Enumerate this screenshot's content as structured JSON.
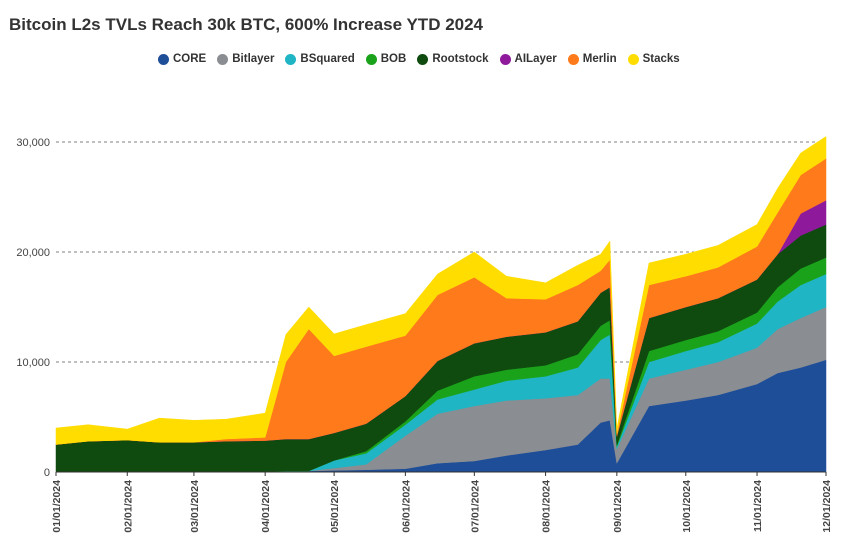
{
  "chart_data": {
    "type": "area",
    "stacked": true,
    "title": "Bitcoin L2s TVLs Reach 30k BTC, 600% Increase YTD 2024",
    "xlabel": "",
    "ylabel": "",
    "ylim": [
      0,
      30000
    ],
    "yticks": [
      0,
      10000,
      20000,
      30000
    ],
    "ytick_labels": [
      "0",
      "10,000",
      "20,000",
      "30,000"
    ],
    "grid": "dashed-horizontal",
    "legend_position": "top",
    "x": [
      "01/01/2024",
      "01/15/2024",
      "02/01/2024",
      "02/15/2024",
      "03/01/2024",
      "03/15/2024",
      "04/01/2024",
      "04/10/2024",
      "04/20/2024",
      "05/01/2024",
      "05/15/2024",
      "06/01/2024",
      "06/15/2024",
      "07/01/2024",
      "07/15/2024",
      "08/01/2024",
      "08/15/2024",
      "08/25/2024",
      "08/29/2024",
      "09/01/2024",
      "09/15/2024",
      "10/01/2024",
      "10/15/2024",
      "11/01/2024",
      "11/10/2024",
      "11/20/2024",
      "12/01/2024"
    ],
    "xtick_labels": [
      "01/01/2024",
      "02/01/2024",
      "03/01/2024",
      "04/01/2024",
      "05/01/2024",
      "06/01/2024",
      "07/01/2024",
      "08/01/2024",
      "09/01/2024",
      "10/01/2024",
      "11/01/2024",
      "12/01/2024"
    ],
    "series": [
      {
        "name": "CORE",
        "color": "#1f4e99",
        "values": [
          0,
          0,
          0,
          0,
          0,
          0,
          50,
          100,
          100,
          150,
          200,
          300,
          800,
          1000,
          1500,
          2000,
          2500,
          4500,
          4700,
          800,
          6000,
          6500,
          7000,
          8000,
          9000,
          9500,
          10200
        ]
      },
      {
        "name": "Bitlayer",
        "color": "#8a8d91",
        "values": [
          0,
          0,
          0,
          0,
          0,
          0,
          0,
          0,
          0,
          200,
          500,
          3000,
          4500,
          5000,
          5000,
          4700,
          4500,
          4000,
          3800,
          1300,
          2500,
          2800,
          3000,
          3300,
          4000,
          4500,
          4800
        ]
      },
      {
        "name": "BSquared",
        "color": "#1fb5c4",
        "values": [
          0,
          0,
          0,
          0,
          0,
          0,
          0,
          0,
          0,
          700,
          1000,
          1000,
          1300,
          1500,
          1800,
          2000,
          2500,
          3500,
          4000,
          200,
          1500,
          1700,
          1800,
          2200,
          2500,
          3000,
          3000
        ]
      },
      {
        "name": "BOB",
        "color": "#1aa31a",
        "values": [
          0,
          0,
          0,
          0,
          0,
          0,
          0,
          0,
          0,
          0,
          200,
          300,
          800,
          1200,
          1000,
          1000,
          1200,
          1300,
          1300,
          150,
          1000,
          1000,
          1000,
          1000,
          1300,
          1500,
          1500
        ]
      },
      {
        "name": "Rootstock",
        "color": "#0f4a0f",
        "values": [
          2500,
          2800,
          2900,
          2700,
          2700,
          2800,
          2800,
          2900,
          2900,
          2500,
          2500,
          2300,
          2700,
          3000,
          3000,
          3000,
          3000,
          3000,
          3000,
          800,
          3000,
          3000,
          3000,
          3000,
          3000,
          3000,
          3000
        ]
      },
      {
        "name": "AILayer",
        "color": "#8e1a9b",
        "values": [
          0,
          0,
          0,
          0,
          0,
          0,
          0,
          0,
          0,
          0,
          0,
          0,
          0,
          0,
          0,
          0,
          0,
          0,
          0,
          0,
          0,
          0,
          0,
          0,
          0,
          2000,
          2200
        ]
      },
      {
        "name": "Merlin",
        "color": "#ff7a1a",
        "values": [
          0,
          0,
          0,
          0,
          0,
          200,
          300,
          7000,
          10000,
          7000,
          7000,
          5500,
          6000,
          6000,
          3500,
          3000,
          3300,
          2000,
          2500,
          200,
          3000,
          2800,
          2800,
          3000,
          3800,
          3500,
          3800
        ]
      },
      {
        "name": "Stacks",
        "color": "#ffdd00",
        "values": [
          1500,
          1500,
          1000,
          2200,
          2000,
          1800,
          2200,
          2500,
          2000,
          2000,
          2000,
          2000,
          1900,
          2300,
          2000,
          1500,
          1800,
          1500,
          1700,
          500,
          2000,
          2000,
          2000,
          2000,
          2200,
          2000,
          2000
        ]
      }
    ]
  }
}
